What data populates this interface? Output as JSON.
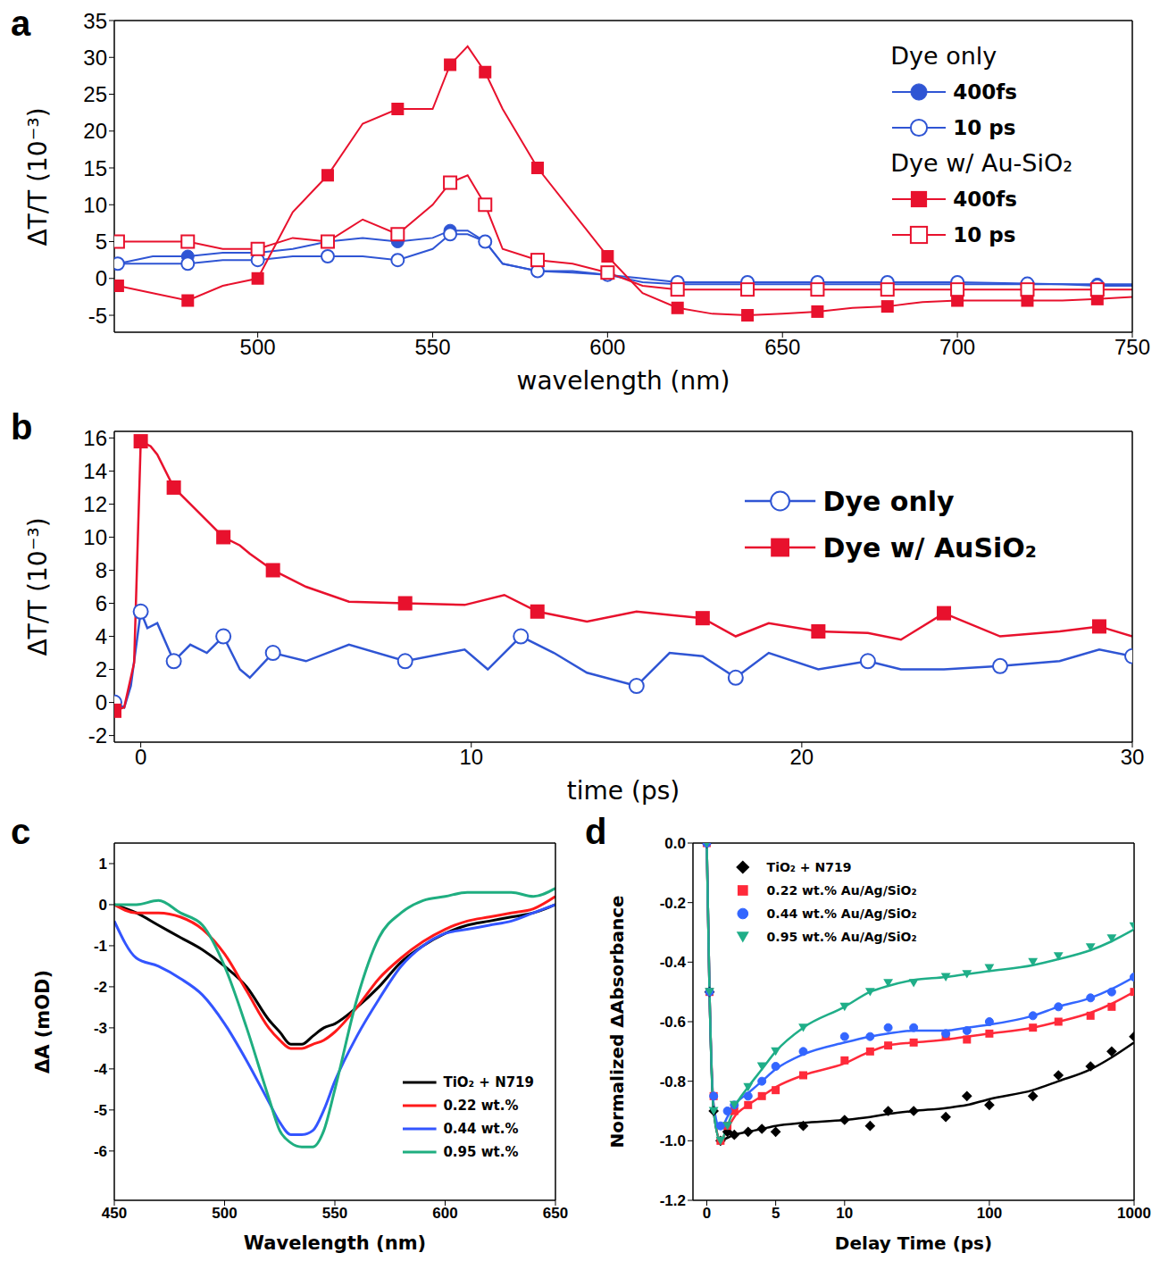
{
  "chart_data": [
    {
      "title": "a",
      "type": "line",
      "xlabel": "wavelength (nm)",
      "ylabel": "ΔT/T (10⁻³)",
      "xlim": [
        459,
        750
      ],
      "xticks": [
        500,
        550,
        600,
        650,
        700,
        750
      ],
      "ylim": [
        -7.3,
        35
      ],
      "yticks": [
        -5,
        0,
        5,
        10,
        15,
        20,
        25,
        30,
        35
      ],
      "legend": "upper right",
      "x": [
        460,
        470,
        480,
        490,
        500,
        510,
        520,
        530,
        540,
        550,
        555,
        560,
        565,
        570,
        580,
        590,
        600,
        610,
        620,
        630,
        640,
        650,
        660,
        670,
        680,
        690,
        700,
        710,
        720,
        730,
        740,
        750
      ],
      "series": [
        {
          "group": "Dye only",
          "name": "400fs",
          "color": "#2f55d4",
          "marker": "circle_filled",
          "line_style": "solid",
          "values": [
            2,
            3,
            3,
            3.5,
            3.5,
            4,
            5,
            5.5,
            5,
            5.5,
            6.5,
            6.5,
            5,
            2,
            1,
            1,
            0.5,
            -0.5,
            -0.8,
            -0.8,
            -0.8,
            -0.8,
            -0.8,
            -0.8,
            -0.8,
            -0.8,
            -0.8,
            -0.8,
            -0.8,
            -0.8,
            -0.8,
            -0.8
          ]
        },
        {
          "group": "Dye only",
          "name": "10 ps",
          "color": "#2f55d4",
          "marker": "circle_open",
          "line_style": "solid",
          "values": [
            2,
            2,
            2,
            2.5,
            2.5,
            3,
            3,
            3,
            2.5,
            4,
            6,
            6,
            5,
            2,
            1,
            0.8,
            0.5,
            0,
            -0.5,
            -0.5,
            -0.5,
            -0.5,
            -0.5,
            -0.5,
            -0.5,
            -0.5,
            -0.5,
            -0.6,
            -0.7,
            -0.8,
            -1,
            -1
          ]
        },
        {
          "group": "Dye w/ Au-SiO₂",
          "name": "400fs",
          "color": "#e8112d",
          "marker": "square_filled",
          "line_style": "solid",
          "values": [
            -1,
            -2,
            -3,
            -1,
            0,
            9,
            14,
            21,
            23,
            23,
            29,
            31.5,
            28,
            23,
            15,
            9,
            3,
            -2,
            -4,
            -4.8,
            -5,
            -4.8,
            -4.5,
            -4,
            -3.8,
            -3.2,
            -3,
            -3,
            -3,
            -3,
            -2.8,
            -2.5
          ]
        },
        {
          "group": "Dye w/ Au-SiO₂",
          "name": "10 ps",
          "color": "#e8112d",
          "marker": "square_open",
          "line_style": "solid",
          "values": [
            5,
            5,
            5,
            4,
            4,
            5.5,
            5,
            8,
            6,
            10,
            13,
            14,
            10,
            4,
            2.5,
            2,
            0.8,
            -1,
            -1.5,
            -1.5,
            -1.5,
            -1.5,
            -1.5,
            -1.5,
            -1.5,
            -1.5,
            -1.5,
            -1.5,
            -1.5,
            -1.5,
            -1.5,
            -1.5
          ]
        }
      ]
    },
    {
      "title": "b",
      "type": "line",
      "xlabel": "time (ps)",
      "ylabel": "ΔT/T (10⁻³)",
      "xlim": [
        -0.8,
        30
      ],
      "xticks": [
        0,
        10,
        20,
        30
      ],
      "ylim": [
        -2.4,
        16.4
      ],
      "yticks": [
        -2,
        0,
        2,
        4,
        6,
        8,
        10,
        12,
        14,
        16
      ],
      "legend": "upper right",
      "series": [
        {
          "name": "Dye only",
          "color": "#2f55d4",
          "marker": "circle_open",
          "line_style": "solid",
          "x": [
            -0.8,
            -0.5,
            -0.3,
            0,
            0.2,
            0.5,
            1,
            1.5,
            2,
            2.5,
            3,
            3.3,
            4,
            5,
            6.3,
            8,
            9.8,
            10.5,
            11.5,
            12.5,
            13.5,
            15,
            16,
            17,
            18,
            19,
            20.5,
            22,
            23,
            24.3,
            26,
            27.8,
            29,
            30
          ],
          "values": [
            0,
            -0.3,
            1,
            5.5,
            4.5,
            4.8,
            2.5,
            3.5,
            3,
            4,
            2,
            1.5,
            3,
            2.5,
            3.5,
            2.5,
            3.2,
            2,
            4,
            3,
            1.8,
            1,
            3,
            2.8,
            1.5,
            3,
            2,
            2.5,
            2,
            2,
            2.2,
            2.5,
            3.2,
            2.8
          ]
        },
        {
          "name": "Dye w/ AuSiO₂",
          "color": "#e8112d",
          "marker": "square_filled",
          "line_style": "solid",
          "x": [
            -0.8,
            -0.5,
            -0.2,
            0,
            0.3,
            0.5,
            1,
            1.5,
            2,
            2.5,
            3,
            3.3,
            4,
            5,
            6.3,
            8,
            9.8,
            11,
            12,
            13.5,
            15,
            17,
            18,
            19,
            20.5,
            22,
            23,
            24.3,
            26,
            27.8,
            29,
            30
          ],
          "values": [
            -0.5,
            -0.3,
            2.4,
            15.8,
            15.5,
            15,
            13,
            12,
            11,
            10,
            9.5,
            9,
            8,
            7,
            6.1,
            6,
            5.9,
            6.5,
            5.5,
            4.9,
            5.5,
            5.1,
            4,
            4.8,
            4.3,
            4.2,
            3.8,
            5.4,
            4,
            4.3,
            4.6,
            4
          ]
        }
      ]
    },
    {
      "title": "c",
      "type": "line",
      "xlabel": "Wavelength (nm)",
      "ylabel": "ΔA (mOD)",
      "xlim": [
        450,
        650
      ],
      "xticks": [
        450,
        500,
        550,
        600,
        650
      ],
      "ylim": [
        -7.2,
        1.5
      ],
      "yticks": [
        -6,
        -5,
        -4,
        -3,
        -2,
        -1,
        0,
        1
      ],
      "legend": "lower right",
      "x": [
        450,
        460,
        470,
        480,
        490,
        500,
        510,
        520,
        525,
        530,
        535,
        540,
        545,
        550,
        560,
        570,
        580,
        590,
        600,
        610,
        620,
        630,
        640,
        650
      ],
      "series": [
        {
          "name": "TiO₂ + N719",
          "color": "#000000",
          "line_style": "solid",
          "values": [
            0,
            -0.2,
            -0.5,
            -0.8,
            -1.1,
            -1.5,
            -2,
            -2.8,
            -3.1,
            -3.4,
            -3.4,
            -3.2,
            -3,
            -2.9,
            -2.5,
            -2,
            -1.4,
            -1,
            -0.7,
            -0.5,
            -0.4,
            -0.3,
            -0.2,
            0
          ]
        },
        {
          "name": "0.22 wt.%",
          "color": "#ff1a1a",
          "line_style": "solid",
          "values": [
            0,
            -0.2,
            -0.2,
            -0.3,
            -0.6,
            -1.2,
            -2.1,
            -3,
            -3.3,
            -3.5,
            -3.5,
            -3.4,
            -3.3,
            -3.1,
            -2.5,
            -1.8,
            -1.3,
            -0.9,
            -0.6,
            -0.4,
            -0.3,
            -0.2,
            -0.1,
            0.2
          ]
        },
        {
          "name": "0.44 wt.%",
          "color": "#3355ff",
          "line_style": "solid",
          "values": [
            -0.4,
            -1.3,
            -1.5,
            -1.8,
            -2.2,
            -2.9,
            -3.8,
            -4.8,
            -5.3,
            -5.6,
            -5.6,
            -5.5,
            -5,
            -4.3,
            -3.2,
            -2.3,
            -1.5,
            -1,
            -0.7,
            -0.6,
            -0.5,
            -0.4,
            -0.2,
            0
          ]
        },
        {
          "name": "0.95 wt.%",
          "color": "#1fae80",
          "line_style": "solid",
          "values": [
            0,
            0,
            0.1,
            -0.2,
            -0.5,
            -1.5,
            -3,
            -4.7,
            -5.5,
            -5.8,
            -5.9,
            -5.9,
            -5.5,
            -4.5,
            -2.3,
            -0.8,
            -0.2,
            0.1,
            0.2,
            0.3,
            0.3,
            0.3,
            0.2,
            0.4
          ]
        }
      ]
    },
    {
      "title": "d",
      "type": "scatter",
      "xlabel": "Delay Time (ps)",
      "ylabel": "Normalized ΔAbsorbance",
      "log": "x",
      "xlim": [
        -1,
        1000
      ],
      "xticks": [
        0,
        5,
        10,
        100,
        1000
      ],
      "ylim": [
        -1.2,
        0
      ],
      "yticks": [
        -1.2,
        {
          "value": -1,
          "label": "-1.0"
        },
        -0.8,
        -0.6,
        -0.4,
        -0.2,
        {
          "value": 0,
          "label": "0.0"
        }
      ],
      "legend": "upper left",
      "x": [
        0,
        0.2,
        0.5,
        1,
        1.5,
        2,
        3,
        4,
        5,
        7,
        10,
        15,
        20,
        30,
        50,
        70,
        100,
        200,
        300,
        500,
        700,
        1000
      ],
      "series": [
        {
          "name": "TiO₂ + N719",
          "color": "#000000",
          "marker": "diamond",
          "values": [
            0,
            -0.5,
            -0.9,
            -1.0,
            -0.97,
            -0.98,
            -0.97,
            -0.96,
            -0.97,
            -0.95,
            -0.93,
            -0.95,
            -0.9,
            -0.9,
            -0.92,
            -0.85,
            -0.88,
            -0.85,
            -0.78,
            -0.75,
            -0.7,
            -0.65
          ],
          "fit": [
            0,
            -0.5,
            -0.9,
            -1.0,
            -0.99,
            -0.98,
            -0.97,
            -0.96,
            -0.95,
            -0.94,
            -0.93,
            -0.92,
            -0.91,
            -0.9,
            -0.89,
            -0.88,
            -0.86,
            -0.83,
            -0.8,
            -0.76,
            -0.72,
            -0.67
          ]
        },
        {
          "name": "0.22 wt.% Au/Ag/SiO₂",
          "color": "#ff2a3a",
          "marker": "square",
          "values": [
            0,
            -0.5,
            -0.85,
            -1.0,
            -0.95,
            -0.9,
            -0.88,
            -0.85,
            -0.83,
            -0.78,
            -0.73,
            -0.7,
            -0.68,
            -0.67,
            -0.65,
            -0.66,
            -0.64,
            -0.62,
            -0.6,
            -0.58,
            -0.55,
            -0.5
          ],
          "fit": [
            0,
            -0.5,
            -0.88,
            -1.0,
            -0.96,
            -0.92,
            -0.88,
            -0.85,
            -0.82,
            -0.78,
            -0.74,
            -0.7,
            -0.68,
            -0.67,
            -0.66,
            -0.65,
            -0.64,
            -0.62,
            -0.6,
            -0.57,
            -0.54,
            -0.5
          ]
        },
        {
          "name": "0.44 wt.% Au/Ag/SiO₂",
          "color": "#3366ff",
          "marker": "circle",
          "values": [
            0,
            -0.5,
            -0.85,
            -0.95,
            -0.9,
            -0.88,
            -0.85,
            -0.8,
            -0.75,
            -0.7,
            -0.65,
            -0.65,
            -0.62,
            -0.62,
            -0.64,
            -0.63,
            -0.6,
            -0.58,
            -0.55,
            -0.52,
            -0.5,
            -0.45
          ],
          "fit": [
            0,
            -0.5,
            -0.88,
            -0.96,
            -0.92,
            -0.88,
            -0.84,
            -0.8,
            -0.76,
            -0.71,
            -0.67,
            -0.65,
            -0.64,
            -0.63,
            -0.63,
            -0.62,
            -0.61,
            -0.58,
            -0.55,
            -0.52,
            -0.49,
            -0.45
          ]
        },
        {
          "name": "0.95 wt.% Au/Ag/SiO₂",
          "color": "#1fae88",
          "marker": "triangle_down",
          "values": [
            0,
            -0.5,
            -0.9,
            -1.0,
            -0.95,
            -0.88,
            -0.82,
            -0.75,
            -0.7,
            -0.62,
            -0.55,
            -0.5,
            -0.47,
            -0.47,
            -0.45,
            -0.44,
            -0.42,
            -0.4,
            -0.38,
            -0.35,
            -0.32,
            -0.28
          ],
          "fit": [
            0,
            -0.5,
            -0.9,
            -1.0,
            -0.95,
            -0.89,
            -0.82,
            -0.76,
            -0.7,
            -0.62,
            -0.55,
            -0.5,
            -0.48,
            -0.46,
            -0.45,
            -0.44,
            -0.43,
            -0.41,
            -0.39,
            -0.36,
            -0.33,
            -0.29
          ]
        }
      ]
    }
  ]
}
